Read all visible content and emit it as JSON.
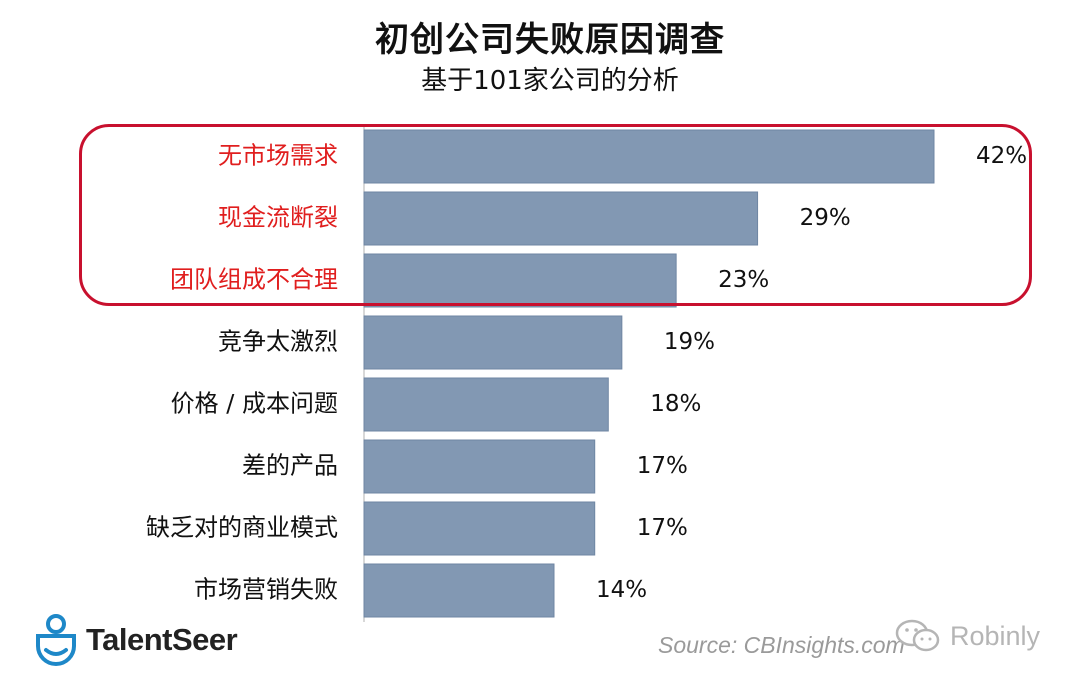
{
  "chart_data": {
    "type": "bar",
    "orientation": "horizontal",
    "title": "初创公司失败原因调查",
    "subtitle": "基于101家公司的分析",
    "categories": [
      "无市场需求",
      "现金流断裂",
      "团队组成不合理",
      "竞争太激烈",
      "价格 / 成本问题",
      "差的产品",
      "缺乏对的商业模式",
      "市场营销失败"
    ],
    "values": [
      42,
      29,
      23,
      19,
      18,
      17,
      17,
      14
    ],
    "value_labels": [
      "42%",
      "29%",
      "23%",
      "19%",
      "18%",
      "17%",
      "17%",
      "14%"
    ],
    "highlighted_categories": [
      "无市场需求",
      "现金流断裂",
      "团队组成不合理"
    ],
    "unit": "%",
    "grid": false,
    "legend": "none"
  },
  "colors": {
    "bar": "#8298b3",
    "bar_border": "#6f86a3",
    "highlight": "#e01e1e",
    "label": "#111111"
  },
  "source": "Source: CBInsights.com",
  "logos": {
    "left": "TalentSeer",
    "right": "Robinly",
    "left_icon": "talentseer-person-icon",
    "right_icon": "wechat-icon"
  }
}
